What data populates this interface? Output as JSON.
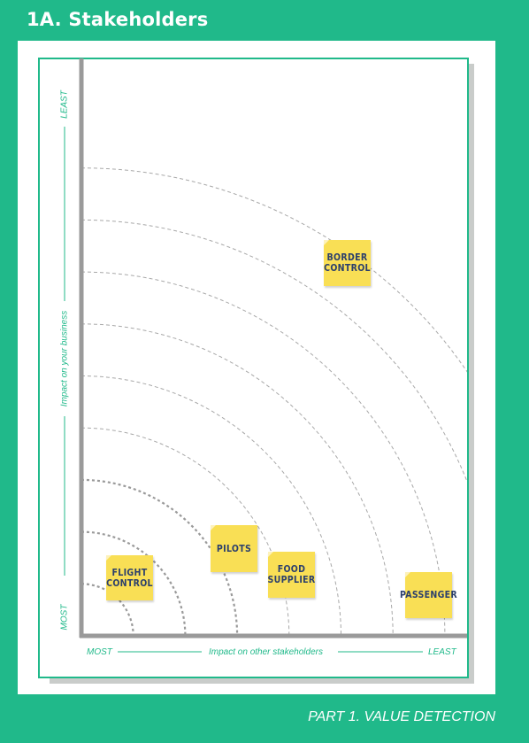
{
  "page": {
    "title": "1A. Stakeholders",
    "footer": "PART 1. VALUE DETECTION"
  },
  "axes": {
    "x": {
      "label": "Impact on other stakeholders",
      "min_label": "MOST",
      "max_label": "LEAST"
    },
    "y": {
      "label": "Impact on your business",
      "min_label": "MOST",
      "max_label": "LEAST"
    }
  },
  "stakeholders": [
    {
      "name": "FLIGHT\nCONTROL"
    },
    {
      "name": "PILOTS"
    },
    {
      "name": "FOOD\nSUPPLIER"
    },
    {
      "name": "PASSENGER"
    },
    {
      "name": "BORDER\nCONTROL"
    }
  ],
  "colors": {
    "accent": "#20b98a",
    "note": "#f9df55",
    "note_text": "#2b3f6c",
    "axis": "#9a9a9a"
  }
}
